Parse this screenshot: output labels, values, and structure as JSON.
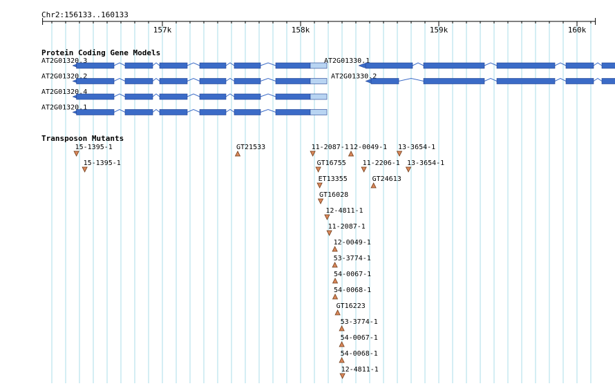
{
  "region": {
    "label": "Chr2:156133..160133",
    "start": 156133,
    "end": 160133,
    "ticks": [
      {
        "pos": 157000,
        "label": "157k"
      },
      {
        "pos": 158000,
        "label": "158k"
      },
      {
        "pos": 159000,
        "label": "159k"
      },
      {
        "pos": 160000,
        "label": "160k"
      }
    ]
  },
  "colors": {
    "grid": "#a8dce8",
    "exon": "#3b6bc7",
    "utr": "#b8d4f2",
    "exon_border": "#1d3f8f",
    "intron": "#3b6bc7",
    "marker_fill": "#d9875b",
    "marker_stroke": "#6e3a16",
    "text": "#000000"
  },
  "tracks": {
    "genes": {
      "title": "Protein Coding Gene Models",
      "models": [
        {
          "name": "AT2G01320.3",
          "row": 0,
          "strand": "-",
          "utr5": [
            156350,
            156378
          ],
          "cds": [
            [
              156378,
              156650
            ],
            [
              156730,
              156930
            ],
            [
              156980,
              157180
            ],
            [
              157270,
              157460
            ],
            [
              157520,
              157710
            ],
            [
              157820,
              158070
            ]
          ],
          "utr3": [
            158070,
            158190
          ]
        },
        {
          "name": "AT2G01320.2",
          "row": 1,
          "strand": "-",
          "utr5": [
            156350,
            156378
          ],
          "cds": [
            [
              156378,
              156650
            ],
            [
              156730,
              156930
            ],
            [
              156980,
              157180
            ],
            [
              157270,
              157460
            ],
            [
              157520,
              157710
            ],
            [
              157820,
              158070
            ]
          ],
          "utr3": [
            158070,
            158190
          ]
        },
        {
          "name": "AT2G01320.4",
          "row": 2,
          "strand": "-",
          "utr5": [
            156350,
            156378
          ],
          "cds": [
            [
              156378,
              156650
            ],
            [
              156730,
              156930
            ],
            [
              156980,
              157180
            ],
            [
              157270,
              157460
            ],
            [
              157520,
              157710
            ],
            [
              157820,
              158070
            ]
          ],
          "utr3": [
            158070,
            158190
          ]
        },
        {
          "name": "AT2G01320.1",
          "row": 3,
          "strand": "-",
          "utr5": [
            156350,
            156378
          ],
          "cds": [
            [
              156378,
              156650
            ],
            [
              156730,
              156930
            ],
            [
              156980,
              157180
            ],
            [
              157270,
              157460
            ],
            [
              157520,
              157710
            ],
            [
              157820,
              158070
            ]
          ],
          "utr3": [
            158070,
            158190
          ]
        },
        {
          "name": "AT2G01330.1",
          "row": 0,
          "strand": "-",
          "utr5": [
            158420,
            158470
          ],
          "cds": [
            [
              158470,
              158810
            ],
            [
              158890,
              159330
            ],
            [
              159420,
              159840
            ],
            [
              159920,
              160120
            ],
            [
              160180,
              160300
            ]
          ],
          "utr3": null
        },
        {
          "name": "AT2G01330.2",
          "row": 1,
          "strand": "-",
          "utr5": [
            158470,
            158510
          ],
          "cds": [
            [
              158510,
              158710
            ],
            [
              158890,
              159330
            ],
            [
              159420,
              159840
            ],
            [
              159920,
              160120
            ],
            [
              160180,
              160300
            ]
          ],
          "utr3": null
        }
      ]
    },
    "transposons": {
      "title": "Transposon Mutants",
      "items": [
        {
          "label": "15-1395-1",
          "pos": 156378,
          "row": 0,
          "dir": "down"
        },
        {
          "label": "15-1395-1",
          "pos": 156438,
          "row": 1,
          "dir": "down"
        },
        {
          "label": "GT21533",
          "pos": 157545,
          "row": 0,
          "dir": "up"
        },
        {
          "label": "11-2087-1",
          "pos": 158088,
          "row": 0,
          "dir": "down"
        },
        {
          "label": "12-0049-1",
          "pos": 158365,
          "row": 0,
          "dir": "up"
        },
        {
          "label": "13-3654-1",
          "pos": 158715,
          "row": 0,
          "dir": "down"
        },
        {
          "label": "GT16755",
          "pos": 158128,
          "row": 1,
          "dir": "down"
        },
        {
          "label": "11-2206-1",
          "pos": 158458,
          "row": 1,
          "dir": "down"
        },
        {
          "label": "13-3654-1",
          "pos": 158780,
          "row": 1,
          "dir": "down"
        },
        {
          "label": "ET13355",
          "pos": 158138,
          "row": 2,
          "dir": "down"
        },
        {
          "label": "GT24613",
          "pos": 158528,
          "row": 2,
          "dir": "up"
        },
        {
          "label": "GT16028",
          "pos": 158145,
          "row": 3,
          "dir": "down"
        },
        {
          "label": "12-4811-1",
          "pos": 158192,
          "row": 4,
          "dir": "down"
        },
        {
          "label": "11-2087-1",
          "pos": 158208,
          "row": 5,
          "dir": "down"
        },
        {
          "label": "12-0049-1",
          "pos": 158248,
          "row": 6,
          "dir": "up"
        },
        {
          "label": "53-3774-1",
          "pos": 158248,
          "row": 7,
          "dir": "up"
        },
        {
          "label": "54-0067-1",
          "pos": 158250,
          "row": 8,
          "dir": "up"
        },
        {
          "label": "54-0068-1",
          "pos": 158250,
          "row": 9,
          "dir": "up"
        },
        {
          "label": "GT16223",
          "pos": 158268,
          "row": 10,
          "dir": "up"
        },
        {
          "label": "53-3774-1",
          "pos": 158298,
          "row": 11,
          "dir": "up"
        },
        {
          "label": "54-0067-1",
          "pos": 158298,
          "row": 12,
          "dir": "up"
        },
        {
          "label": "54-0068-1",
          "pos": 158298,
          "row": 13,
          "dir": "up"
        },
        {
          "label": "12-4811-1",
          "pos": 158303,
          "row": 14,
          "dir": "down"
        }
      ]
    }
  }
}
